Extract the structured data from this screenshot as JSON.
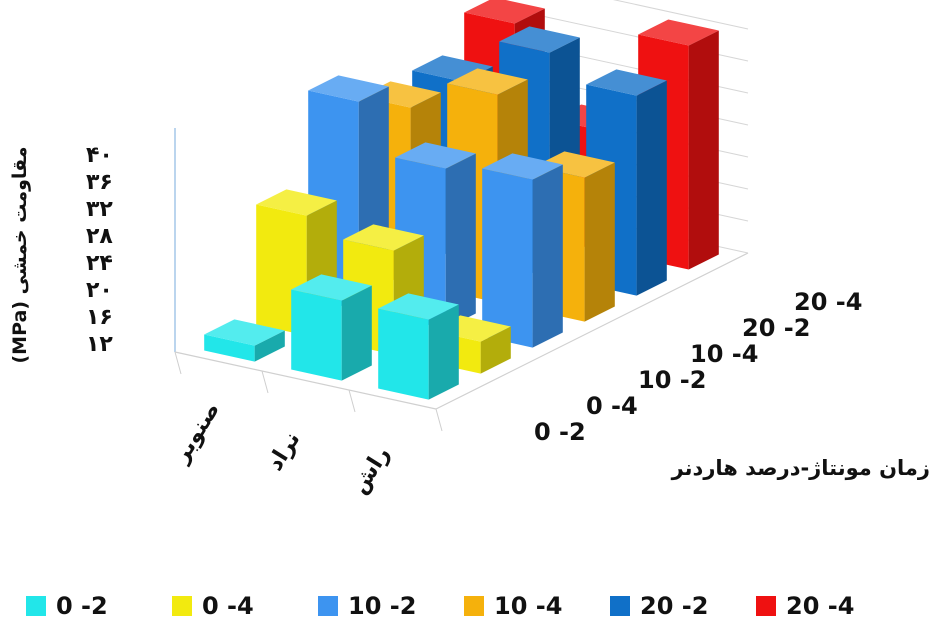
{
  "chart_data": {
    "type": "bar",
    "subtype": "3d-clustered",
    "ylabel": "مقاومت خمشی (MPa)",
    "xlabel": "زمان مونتاژ-درصد هاردنر",
    "yticks": [
      "۱۲",
      "۱۶",
      "۲۰",
      "۲۴",
      "۲۸",
      "۳۲",
      "۳۶",
      "۴۰"
    ],
    "ylim": [
      12,
      40
    ],
    "categories": [
      "صنوبر",
      "نراد",
      "راش"
    ],
    "series": [
      {
        "name": "0 -2",
        "color": "#22e6e9",
        "values": [
          14,
          22,
          22
        ]
      },
      {
        "name": "0 -4",
        "color": "#f2ea0f",
        "values": [
          27,
          25,
          16
        ]
      },
      {
        "name": "10 -2",
        "color": "#3d94f0",
        "values": [
          38,
          32,
          33
        ]
      },
      {
        "name": "10 -4",
        "color": "#f5b10c",
        "values": [
          34,
          38,
          30
        ]
      },
      {
        "name": "20 -2",
        "color": "#1070c8",
        "values": [
          34,
          40,
          37
        ]
      },
      {
        "name": "20 -4",
        "color": "#ef1111",
        "values": [
          38,
          27,
          40
        ]
      }
    ],
    "grid": true,
    "legend_position": "bottom"
  }
}
